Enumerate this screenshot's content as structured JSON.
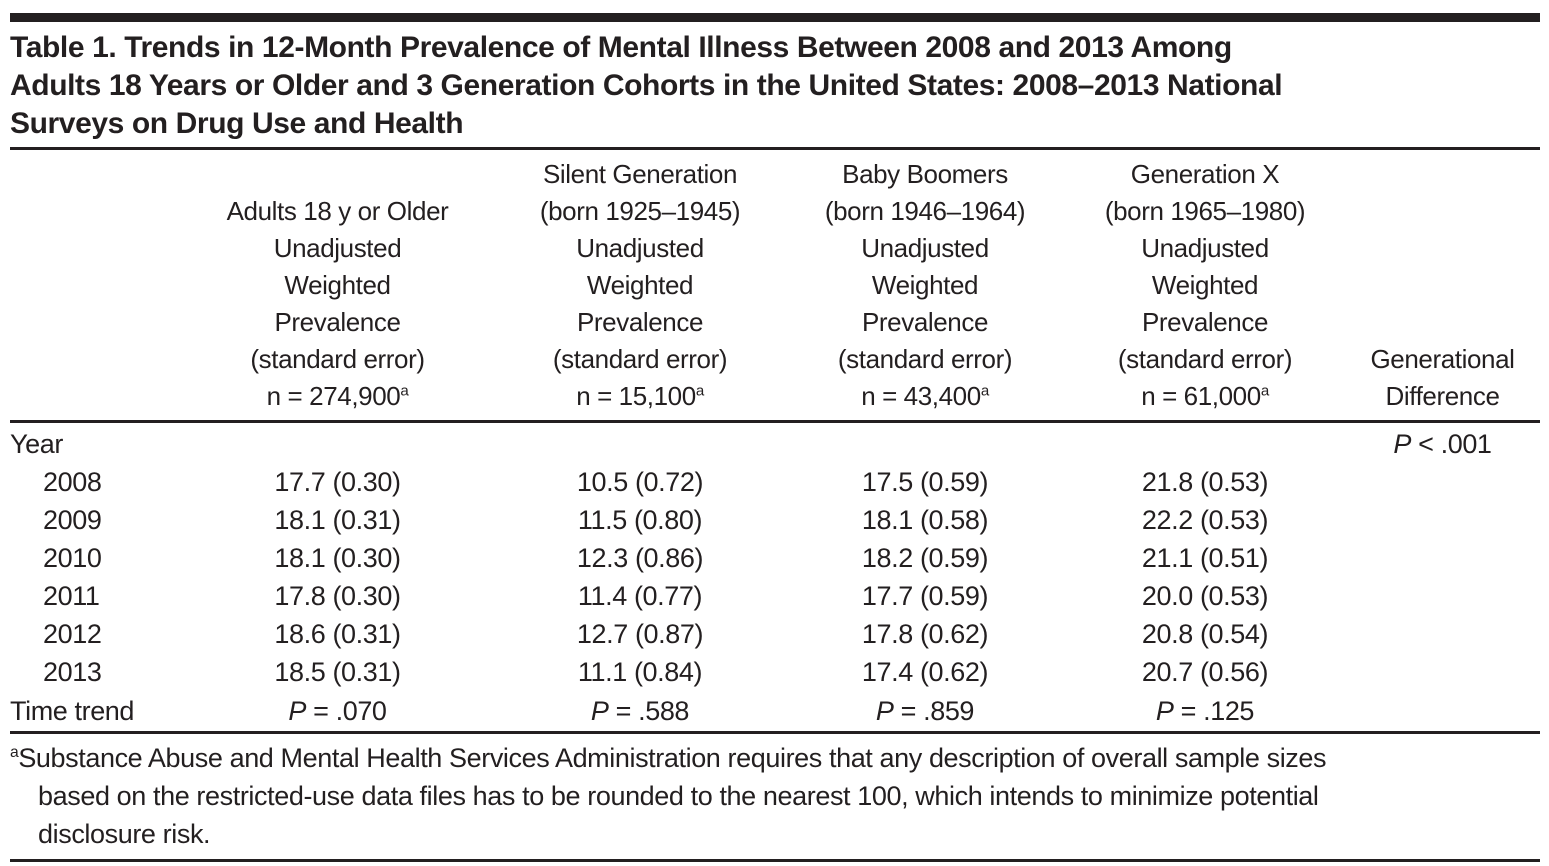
{
  "colors": {
    "text": "#231f20",
    "rule": "#231f20",
    "background": "#ffffff"
  },
  "title_lines": [
    "Table 1. Trends in 12-Month Prevalence of Mental Illness Between 2008 and 2013 Among",
    "Adults 18 Years or Older and 3 Generation Cohorts in the United States: 2008–2013 National",
    "Surveys on Drug Use and Health"
  ],
  "chart_data": {
    "type": "table",
    "title": "Table 1. Trends in 12-Month Prevalence of Mental Illness Between 2008 and 2013 Among Adults 18 Years or Older and 3 Generation Cohorts in the United States: 2008–2013 National Surveys on Drug Use and Health",
    "categories": [
      "2008",
      "2009",
      "2010",
      "2011",
      "2012",
      "2013"
    ],
    "series": [
      {
        "name": "Adults 18 y or Older",
        "n": 274900,
        "values": [
          17.7,
          18.1,
          18.1,
          17.8,
          18.6,
          18.5
        ],
        "standard_errors": [
          0.3,
          0.31,
          0.3,
          0.3,
          0.31,
          0.31
        ],
        "time_trend_p": ".070"
      },
      {
        "name": "Silent Generation (born 1925–1945)",
        "n": 15100,
        "values": [
          10.5,
          11.5,
          12.3,
          11.4,
          12.7,
          11.1
        ],
        "standard_errors": [
          0.72,
          0.8,
          0.86,
          0.77,
          0.87,
          0.84
        ],
        "time_trend_p": ".588"
      },
      {
        "name": "Baby Boomers (born 1946–1964)",
        "n": 43400,
        "values": [
          17.5,
          18.1,
          18.2,
          17.7,
          17.8,
          17.4
        ],
        "standard_errors": [
          0.59,
          0.58,
          0.59,
          0.59,
          0.62,
          0.62
        ],
        "time_trend_p": ".859"
      },
      {
        "name": "Generation X (born 1965–1980)",
        "n": 61000,
        "values": [
          21.8,
          22.2,
          21.1,
          20.0,
          20.8,
          20.7
        ],
        "standard_errors": [
          0.53,
          0.53,
          0.51,
          0.53,
          0.54,
          0.56
        ],
        "time_trend_p": ".125"
      }
    ],
    "generational_difference_p": "< .001"
  },
  "table": {
    "columns": [
      {
        "key": "adults",
        "header_lines": [
          "Adults 18 y or Older",
          "Unadjusted",
          "Weighted",
          "Prevalence",
          "(standard error)"
        ],
        "n_text": "n = 274,900",
        "n_sup": "a"
      },
      {
        "key": "silent",
        "header_lines": [
          "Silent Generation",
          "(born 1925–1945)",
          "Unadjusted",
          "Weighted",
          "Prevalence",
          "(standard error)"
        ],
        "n_text": "n = 15,100",
        "n_sup": "a"
      },
      {
        "key": "boomers",
        "header_lines": [
          "Baby Boomers",
          "(born 1946–1964)",
          "Unadjusted",
          "Weighted",
          "Prevalence",
          "(standard error)"
        ],
        "n_text": "n = 43,400",
        "n_sup": "a"
      },
      {
        "key": "genx",
        "header_lines": [
          "Generation X",
          "(born 1965–1980)",
          "Unadjusted",
          "Weighted",
          "Prevalence",
          "(standard error)"
        ],
        "n_text": "n = 61,000",
        "n_sup": "a"
      }
    ],
    "diff_header_lines": [
      "Generational",
      "Difference"
    ],
    "year_section_label": "Year",
    "year_p_symbol": "P",
    "year_p_rest": " < .001",
    "rows": [
      {
        "year": "2008",
        "adults": "17.7 (0.30)",
        "silent": "10.5 (0.72)",
        "boomers": "17.5 (0.59)",
        "genx": "21.8 (0.53)"
      },
      {
        "year": "2009",
        "adults": "18.1 (0.31)",
        "silent": "11.5 (0.80)",
        "boomers": "18.1 (0.58)",
        "genx": "22.2 (0.53)"
      },
      {
        "year": "2010",
        "adults": "18.1 (0.30)",
        "silent": "12.3 (0.86)",
        "boomers": "18.2 (0.59)",
        "genx": "21.1 (0.51)"
      },
      {
        "year": "2011",
        "adults": "17.8 (0.30)",
        "silent": "11.4 (0.77)",
        "boomers": "17.7 (0.59)",
        "genx": "20.0 (0.53)"
      },
      {
        "year": "2012",
        "adults": "18.6 (0.31)",
        "silent": "12.7 (0.87)",
        "boomers": "17.8 (0.62)",
        "genx": "20.8 (0.54)"
      },
      {
        "year": "2013",
        "adults": "18.5 (0.31)",
        "silent": "11.1 (0.84)",
        "boomers": "17.4 (0.62)",
        "genx": "20.7 (0.56)"
      }
    ],
    "time_trend_label": "Time trend",
    "time_trend": {
      "adults_symbol": "P",
      "adults_rest": " = .070",
      "silent_symbol": "P",
      "silent_rest": " = .588",
      "boomers_symbol": "P",
      "boomers_rest": " = .859",
      "genx_symbol": "P",
      "genx_rest": " = .125"
    }
  },
  "footnote": {
    "sup": "a",
    "lines": [
      "Substance Abuse and Mental Health Services Administration requires that any description of overall sample sizes",
      "based on the restricted-use data files has to be rounded to the nearest 100, which intends to minimize potential",
      "disclosure risk."
    ]
  }
}
